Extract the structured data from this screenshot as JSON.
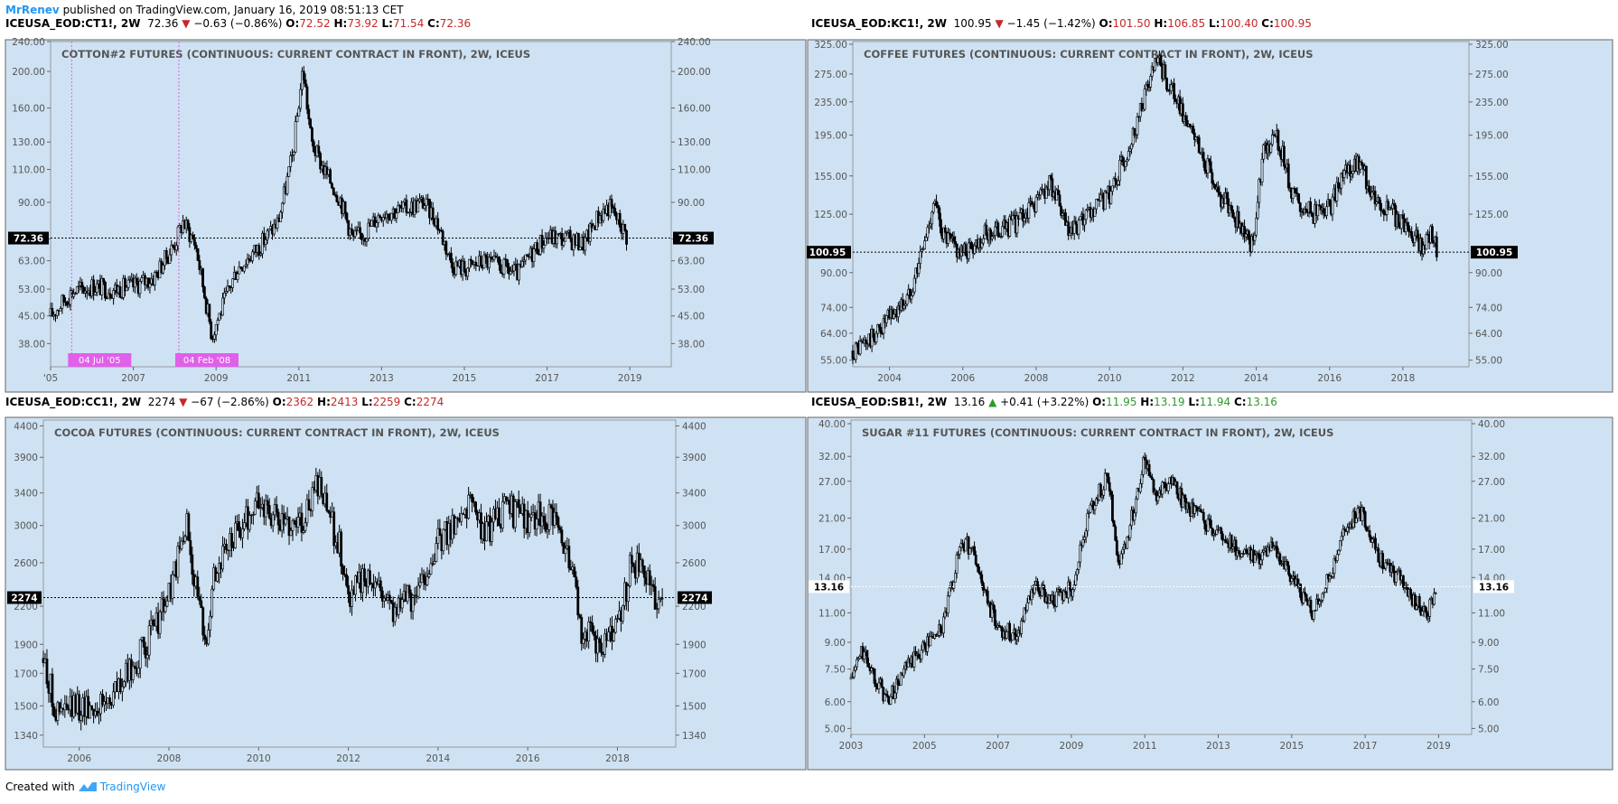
{
  "header": {
    "author": "MrRenev",
    "text": " published on TradingView.com, January 16, 2019 08:51:13 CET"
  },
  "footer": {
    "created_with": "Created with",
    "brand": "TradingView",
    "brand_icon": "tradingview-logo-icon"
  },
  "colors": {
    "plot_bg": "#cfe2f3",
    "price_down": "#c62828",
    "price_up": "#2e9a2e",
    "author_blue": "#2196f3",
    "marker_magenta": "#e060ea",
    "candle": "#000000"
  },
  "panels": [
    {
      "symbol": "ICEUSA_EOD:CT1!, 2W",
      "last": "72.36",
      "direction": "down",
      "change": "−0.63 (−0.86%)",
      "open": "72.52",
      "high": "73.92",
      "low": "71.54",
      "close": "72.36",
      "ohlc_color": "red",
      "title": "COTTON#2 FUTURES (CONTINUOUS: CURRENT CONTRACT IN FRONT), 2W, ICEUS",
      "price_tag": "72.36",
      "markers": [
        {
          "label": "04 Jul '05",
          "date": 2005.51
        },
        {
          "label": "04 Feb '08",
          "date": 2008.1
        }
      ]
    },
    {
      "symbol": "ICEUSA_EOD:KC1!, 2W",
      "last": "100.95",
      "direction": "down",
      "change": "−1.45 (−1.42%)",
      "open": "101.50",
      "high": "106.85",
      "low": "100.40",
      "close": "100.95",
      "ohlc_color": "red",
      "title": "COFFEE FUTURES (CONTINUOUS: CURRENT CONTRACT IN FRONT), 2W, ICEUS",
      "price_tag": "100.95",
      "markers": []
    },
    {
      "symbol": "ICEUSA_EOD:CC1!, 2W",
      "last": "2274",
      "direction": "down",
      "change": "−67 (−2.86%)",
      "open": "2362",
      "high": "2413",
      "low": "2259",
      "close": "2274",
      "ohlc_color": "red",
      "title": "COCOA FUTURES (CONTINUOUS: CURRENT CONTRACT IN FRONT), 2W, ICEUS",
      "price_tag": "2274",
      "markers": []
    },
    {
      "symbol": "ICEUSA_EOD:SB1!, 2W",
      "last": "13.16",
      "direction": "up",
      "change": "+0.41 (+3.22%)",
      "open": "11.95",
      "high": "13.19",
      "low": "11.94",
      "close": "13.16",
      "ohlc_color": "green",
      "title": "SUGAR #11 FUTURES (CONTINUOUS: CURRENT CONTRACT IN FRONT), 2W, ICEUS",
      "price_tag": "13.16",
      "markers": []
    }
  ],
  "chart_data": [
    {
      "type": "line",
      "title": "COTTON#2 FUTURES (CONTINUOUS: CURRENT CONTRACT IN FRONT), 2W, ICEUS",
      "y_scale": "log",
      "ylim": [
        33,
        240
      ],
      "xlim": [
        2005.0,
        2020.0
      ],
      "x_ticks": [
        "'05",
        "2007",
        "2009",
        "2011",
        "2013",
        "2015",
        "2017",
        "2019"
      ],
      "x_tick_values": [
        2005,
        2007,
        2009,
        2011,
        2013,
        2015,
        2017,
        2019
      ],
      "y_ticks": [
        "38.00",
        "45.00",
        "53.00",
        "63.00",
        "72.00",
        "90.00",
        "110.00",
        "130.00",
        "160.00",
        "200.00",
        "240.00"
      ],
      "y_tick_values": [
        38,
        45,
        53,
        63,
        72,
        90,
        110,
        130,
        160,
        200,
        240
      ],
      "last_price": 72.36,
      "series": [
        {
          "x": [
            2005.0,
            2005.5,
            2006.0,
            2006.5,
            2007.0,
            2007.5,
            2008.0,
            2008.2,
            2008.5,
            2008.9,
            2009.0,
            2009.5,
            2010.0,
            2010.5,
            2010.85,
            2011.1,
            2011.3,
            2011.6,
            2012.0,
            2012.3,
            2012.6,
            2013.0,
            2013.5,
            2014.0,
            2014.3,
            2014.7,
            2015.0,
            2015.5,
            2016.0,
            2016.3,
            2016.7,
            2017.0,
            2017.5,
            2017.9,
            2018.2,
            2018.5,
            2018.8,
            2018.95
          ],
          "values": [
            45,
            52,
            54,
            53,
            54,
            57,
            70,
            80,
            70,
            40,
            43,
            60,
            68,
            80,
            120,
            205,
            130,
            110,
            92,
            72,
            75,
            85,
            86,
            90,
            82,
            62,
            60,
            63,
            60,
            58,
            68,
            73,
            72,
            70,
            82,
            88,
            78,
            72.36
          ]
        }
      ]
    },
    {
      "type": "line",
      "title": "COFFEE FUTURES (CONTINUOUS: CURRENT CONTRACT IN FRONT), 2W, ICEUS",
      "y_scale": "log",
      "ylim": [
        53,
        330
      ],
      "xlim": [
        2003.0,
        2019.8
      ],
      "x_ticks": [
        "2004",
        "2006",
        "2008",
        "2010",
        "2012",
        "2014",
        "2016",
        "2018"
      ],
      "x_tick_values": [
        2004,
        2006,
        2008,
        2010,
        2012,
        2014,
        2016,
        2018
      ],
      "y_ticks": [
        "55.00",
        "64.00",
        "74.00",
        "90.00",
        "125.00",
        "155.00",
        "195.00",
        "235.00",
        "275.00",
        "325.00"
      ],
      "y_tick_values": [
        55,
        64,
        74,
        90,
        125,
        155,
        195,
        235,
        275,
        325
      ],
      "last_price": 100.95,
      "series": [
        {
          "x": [
            2003.0,
            2003.5,
            2004.0,
            2004.5,
            2005.0,
            2005.2,
            2005.5,
            2006.0,
            2006.5,
            2007.0,
            2007.5,
            2008.0,
            2008.4,
            2008.9,
            2009.5,
            2010.0,
            2010.5,
            2011.0,
            2011.3,
            2011.6,
            2012.0,
            2012.5,
            2013.0,
            2013.5,
            2013.9,
            2014.2,
            2014.6,
            2015.0,
            2015.5,
            2016.0,
            2016.5,
            2016.8,
            2017.2,
            2017.6,
            2018.0,
            2018.5,
            2018.8,
            2018.95
          ],
          "values": [
            58,
            62,
            70,
            78,
            110,
            135,
            110,
            100,
            110,
            115,
            120,
            135,
            150,
            110,
            125,
            140,
            180,
            250,
            295,
            260,
            220,
            175,
            140,
            120,
            105,
            185,
            190,
            140,
            125,
            130,
            160,
            165,
            140,
            128,
            120,
            105,
            112,
            100.95
          ]
        }
      ]
    },
    {
      "type": "line",
      "title": "COCOA FUTURES (CONTINUOUS: CURRENT CONTRACT IN FRONT), 2W, ICEUS",
      "y_scale": "log",
      "ylim": [
        1280,
        4500
      ],
      "xlim": [
        2005.2,
        2019.3
      ],
      "x_ticks": [
        "2006",
        "2008",
        "2010",
        "2012",
        "2014",
        "2016",
        "2018"
      ],
      "x_tick_values": [
        2006,
        2008,
        2010,
        2012,
        2014,
        2016,
        2018
      ],
      "y_ticks": [
        "1340",
        "1500",
        "1700",
        "1900",
        "2200",
        "2600",
        "3000",
        "3400",
        "3900",
        "4400"
      ],
      "y_tick_values": [
        1340,
        1500,
        1700,
        1900,
        2200,
        2600,
        3000,
        3400,
        3900,
        4400
      ],
      "last_price": 2274,
      "series": [
        {
          "x": [
            2005.2,
            2005.5,
            2006.0,
            2006.5,
            2007.0,
            2007.5,
            2008.0,
            2008.4,
            2008.8,
            2009.0,
            2009.5,
            2010.0,
            2010.5,
            2011.0,
            2011.3,
            2011.8,
            2012.0,
            2012.5,
            2013.0,
            2013.5,
            2014.0,
            2014.7,
            2015.0,
            2015.5,
            2016.0,
            2016.5,
            2016.9,
            2017.2,
            2017.7,
            2018.0,
            2018.3,
            2018.6,
            2018.9,
            2019.0
          ],
          "values": [
            1800,
            1450,
            1500,
            1500,
            1650,
            1900,
            2300,
            3000,
            1900,
            2500,
            2900,
            3300,
            3000,
            3100,
            3500,
            2800,
            2300,
            2500,
            2200,
            2300,
            2800,
            3300,
            2900,
            3200,
            3100,
            3100,
            2700,
            2000,
            1900,
            2000,
            2600,
            2500,
            2200,
            2274
          ]
        }
      ]
    },
    {
      "type": "line",
      "title": "SUGAR #11 FUTURES (CONTINUOUS: CURRENT CONTRACT IN FRONT), 2W, ICEUS",
      "y_scale": "log",
      "ylim": [
        4.8,
        41
      ],
      "xlim": [
        2003.0,
        2019.9
      ],
      "x_ticks": [
        "2003",
        "2005",
        "2007",
        "2009",
        "2011",
        "2013",
        "2015",
        "2017",
        "2019"
      ],
      "x_tick_values": [
        2003,
        2005,
        2007,
        2009,
        2011,
        2013,
        2015,
        2017,
        2019
      ],
      "y_ticks": [
        "5.00",
        "6.00",
        "7.50",
        "9.00",
        "11.00",
        "13.16",
        "14.00",
        "17.00",
        "21.00",
        "27.00",
        "32.00",
        "40.00"
      ],
      "y_tick_values": [
        5,
        6,
        7.5,
        9,
        11,
        13.16,
        14,
        17,
        21,
        27,
        32,
        40
      ],
      "last_price": 13.16,
      "series": [
        {
          "x": [
            2003.0,
            2003.3,
            2003.7,
            2004.0,
            2004.5,
            2005.0,
            2005.5,
            2006.0,
            2006.3,
            2006.7,
            2007.0,
            2007.5,
            2008.0,
            2008.5,
            2009.0,
            2009.5,
            2010.0,
            2010.3,
            2010.6,
            2011.0,
            2011.3,
            2011.7,
            2012.0,
            2012.5,
            2013.0,
            2013.5,
            2014.0,
            2014.5,
            2015.0,
            2015.6,
            2016.0,
            2016.5,
            2016.8,
            2017.0,
            2017.5,
            2018.0,
            2018.3,
            2018.7,
            2018.95
          ],
          "values": [
            7.0,
            8.5,
            7.0,
            6.0,
            7.5,
            8.8,
            10,
            18,
            17,
            12,
            10,
            9.5,
            13,
            12,
            13,
            22,
            28,
            15,
            20,
            32,
            25,
            27,
            24,
            21,
            19,
            17,
            16,
            17,
            14,
            11,
            14,
            20,
            22,
            21,
            15,
            14,
            12,
            11,
            13.16
          ]
        }
      ]
    }
  ]
}
